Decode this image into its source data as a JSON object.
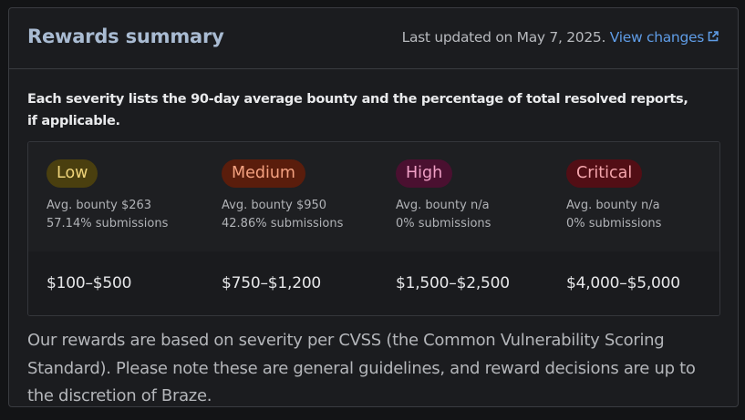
{
  "header": {
    "title": "Rewards summary",
    "updated_text": "Last updated on May 7, 2025.",
    "view_changes_label": "View changes",
    "link_icon": "external-link-icon"
  },
  "intro": "Each severity lists the 90-day average bounty and the percentage of total resolved reports, if applicable.",
  "severities": [
    {
      "label": "Low",
      "avg_bounty": "Avg. bounty $263",
      "submissions": "57.14% submissions",
      "range": "$100–$500",
      "badge_bg": "#4a3f0f",
      "badge_fg": "#efd47a"
    },
    {
      "label": "Medium",
      "avg_bounty": "Avg. bounty $950",
      "submissions": "42.86% submissions",
      "range": "$750–$1,200",
      "badge_bg": "#5a1d0c",
      "badge_fg": "#f4a180"
    },
    {
      "label": "High",
      "avg_bounty": "Avg. bounty n/a",
      "submissions": "0% submissions",
      "range": "$1,500–$2,500",
      "badge_bg": "#4a1030",
      "badge_fg": "#f0a0c6"
    },
    {
      "label": "Critical",
      "avg_bounty": "Avg. bounty n/a",
      "submissions": "0% submissions",
      "range": "$4,000–$5,000",
      "badge_bg": "#520e15",
      "badge_fg": "#f5a6ad"
    }
  ],
  "footer": "Our rewards are based on severity per CVSS (the Common Vulnerability Scoring Standard). Please note these are general guidelines, and reward decisions are up to the discretion of Braze."
}
